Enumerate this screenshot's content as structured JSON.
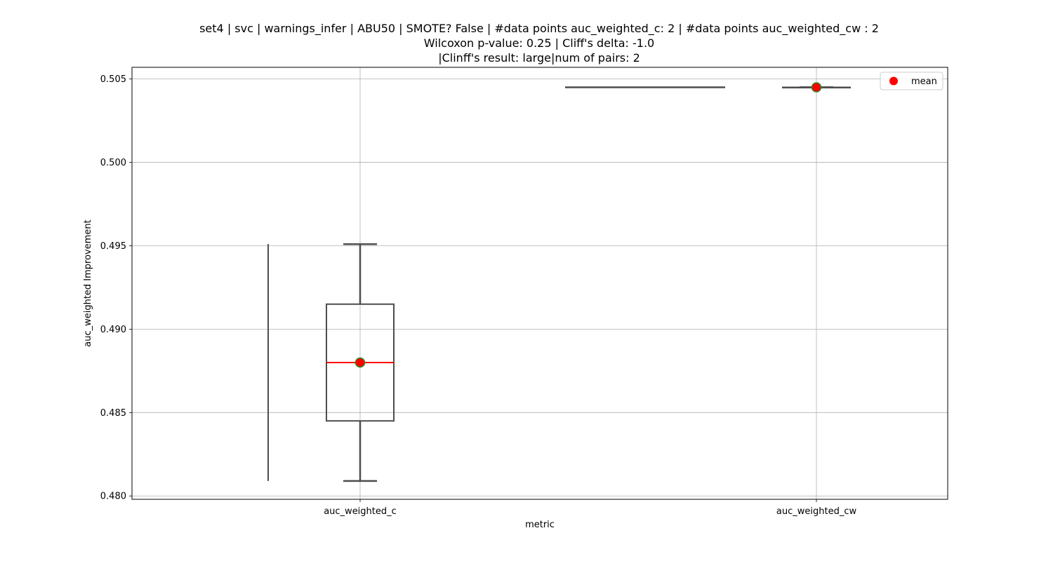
{
  "chart_data": {
    "type": "box",
    "title_lines": [
      "set4 | svc | warnings_infer | ABU50 | SMOTE? False | #data points auc_weighted_c: 2 | #data points auc_weighted_cw : 2",
      "Wilcoxon p-value: 0.25 | Cliff's delta: -1.0",
      "|Clinff's result: large|num of pairs: 2"
    ],
    "xlabel": "metric",
    "ylabel": "auc_weighted Improvement",
    "categories": [
      "auc_weighted_c",
      "auc_weighted_cw"
    ],
    "ylim": [
      0.4798,
      0.5057
    ],
    "yticks": [
      0.48,
      0.485,
      0.49,
      0.495,
      0.5,
      0.505
    ],
    "ytick_labels": [
      "0.480",
      "0.485",
      "0.490",
      "0.495",
      "0.500",
      "0.505"
    ],
    "boxes": [
      {
        "category": "auc_weighted_c",
        "whisker_low": 0.4809,
        "q1": 0.4845,
        "median": 0.488,
        "q3": 0.4915,
        "whisker_high": 0.4951,
        "mean": 0.488
      },
      {
        "category": "auc_weighted_cw",
        "whisker_low": 0.5045,
        "q1": 0.5045,
        "median": 0.5045,
        "q3": 0.5045,
        "whisker_high": 0.5045,
        "mean": 0.5045
      }
    ],
    "extra_lines": [
      {
        "kind": "vertical",
        "y_from": 0.4809,
        "y_to": 0.4951
      },
      {
        "kind": "horizontal",
        "y": 0.5045
      }
    ],
    "legend": {
      "entries": [
        "mean"
      ],
      "placement": "top-right"
    },
    "grid": true,
    "colors": {
      "box_edge": "#4d4d4d",
      "median": "#ff0000",
      "mean_marker": "#ff0000",
      "mean_marker_edge": "#2e8b22",
      "grid": "#b0b0b0"
    }
  }
}
